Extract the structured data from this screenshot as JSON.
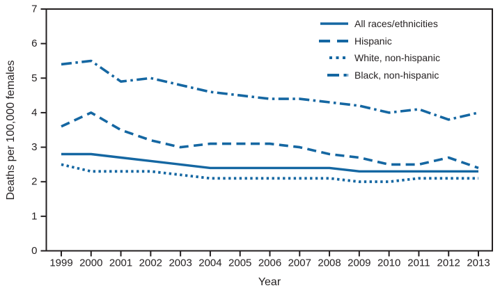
{
  "figure": {
    "y_axis_label": "Deaths per 100,000 females",
    "x_axis_label": "Year"
  },
  "colors": {
    "line": "#1567a2",
    "axis": "#231f20",
    "text": "#231f20",
    "background": "#ffffff"
  },
  "chart_data": {
    "type": "line",
    "title": "",
    "xlabel": "Year",
    "ylabel": "Deaths per 100,000 females",
    "x": [
      1999,
      2000,
      2001,
      2002,
      2003,
      2004,
      2005,
      2006,
      2007,
      2008,
      2009,
      2010,
      2011,
      2012,
      2013
    ],
    "ylim": [
      0,
      7
    ],
    "y_ticks": [
      0,
      1,
      2,
      3,
      4,
      5,
      6,
      7
    ],
    "grid": false,
    "legend_position": "top-right-inside",
    "line_color": "#1567a2",
    "series": [
      {
        "name": "All races/ethnicities",
        "line_style": "solid",
        "values": [
          2.8,
          2.8,
          2.7,
          2.6,
          2.5,
          2.4,
          2.4,
          2.4,
          2.4,
          2.4,
          2.3,
          2.3,
          2.3,
          2.3,
          2.3
        ]
      },
      {
        "name": "Hispanic",
        "line_style": "dashed",
        "values": [
          3.6,
          4.0,
          3.5,
          3.2,
          3.0,
          3.1,
          3.1,
          3.1,
          3.0,
          2.8,
          2.7,
          2.5,
          2.5,
          2.7,
          2.4
        ]
      },
      {
        "name": "White, non-hispanic",
        "line_style": "dotted",
        "values": [
          2.5,
          2.3,
          2.3,
          2.3,
          2.2,
          2.1,
          2.1,
          2.1,
          2.1,
          2.1,
          2.0,
          2.0,
          2.1,
          2.1,
          2.1
        ]
      },
      {
        "name": "Black, non-hispanic",
        "line_style": "dashdot",
        "values": [
          5.4,
          5.5,
          4.9,
          5.0,
          4.8,
          4.6,
          4.5,
          4.4,
          4.4,
          4.3,
          4.2,
          4.0,
          4.1,
          3.8,
          4.0
        ]
      }
    ]
  }
}
